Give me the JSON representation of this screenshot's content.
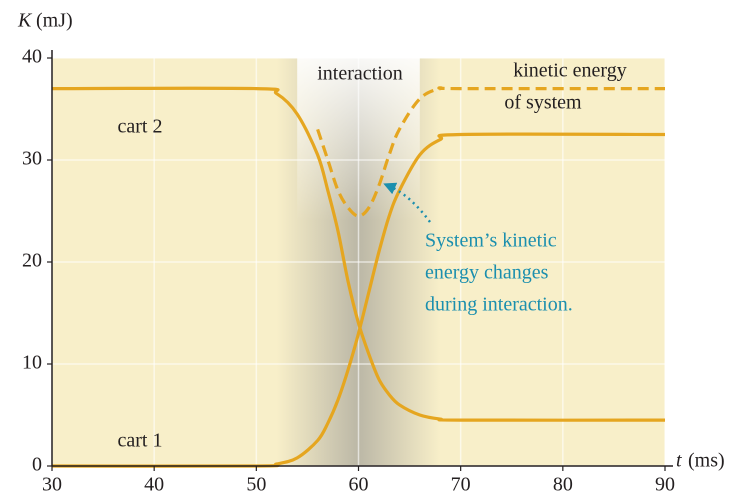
{
  "chart_data": {
    "type": "line",
    "y_label": {
      "symbol": "K",
      "unit": "(mJ)"
    },
    "x_label": {
      "symbol": "t",
      "unit": "(ms)"
    },
    "x": [
      30,
      50,
      52,
      54,
      56,
      57,
      58,
      59,
      60,
      61,
      62,
      63,
      64,
      66,
      68,
      70,
      90
    ],
    "series": [
      {
        "name": "cart 2",
        "color": "#e5a620",
        "dashed": false,
        "values": [
          37,
          37,
          36.5,
          34.5,
          30.5,
          27,
          23,
          18,
          14,
          11,
          8.5,
          7,
          6,
          5,
          4.6,
          4.5,
          4.5
        ]
      },
      {
        "name": "cart 1",
        "color": "#e5a620",
        "dashed": false,
        "values": [
          0,
          0,
          0.2,
          0.8,
          2.5,
          4.2,
          6.5,
          9.5,
          13,
          17,
          21,
          24.5,
          27,
          30.5,
          32,
          32.5,
          32.5
        ]
      },
      {
        "name": "kinetic energy of system",
        "color": "#e5a620",
        "dashed": true,
        "values": [
          null,
          null,
          null,
          null,
          33,
          30,
          27,
          25.3,
          24.5,
          25.3,
          27.5,
          30.5,
          33,
          36,
          37,
          37,
          37
        ]
      }
    ],
    "xlim": [
      30,
      90
    ],
    "xticks": [
      30,
      40,
      50,
      60,
      70,
      80,
      90
    ],
    "ylim": [
      0,
      40
    ],
    "yticks": [
      0,
      10,
      20,
      30,
      40
    ],
    "grid": true,
    "annotations": [
      {
        "text": "interaction"
      },
      {
        "text": "kinetic energy"
      },
      {
        "text": "of system"
      },
      {
        "text": "cart 2"
      },
      {
        "text": "cart 1"
      },
      {
        "text": "System’s kinetic"
      },
      {
        "text": "energy changes"
      },
      {
        "text": "during interaction."
      }
    ]
  }
}
